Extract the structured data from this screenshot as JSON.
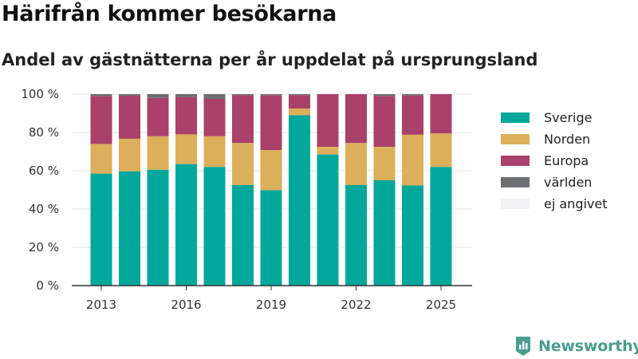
{
  "header": {
    "title": "Härifrån kommer besökarna",
    "subtitle": "Andel av gästnätterna per år uppdelat på ursprungsland"
  },
  "brand": {
    "name": "Newsworthy",
    "icon": "newsworthy-logo-icon",
    "color": "#4a9e8e"
  },
  "chart_data": {
    "type": "bar",
    "stacked": true,
    "ylim": [
      0,
      100
    ],
    "yticks": [
      0,
      20,
      40,
      60,
      80,
      100
    ],
    "ytick_labels": [
      "0 %",
      "20 %",
      "40 %",
      "60 %",
      "80 %",
      "100 %"
    ],
    "xtick_labels": [
      "2013",
      "2016",
      "2019",
      "2022",
      "2025"
    ],
    "categories": [
      "2013",
      "2014",
      "2015",
      "2016",
      "2017",
      "2018",
      "2019",
      "2020",
      "2021",
      "2022",
      "2023",
      "2024",
      "2025"
    ],
    "grid": true,
    "legend_position": "right",
    "series": [
      {
        "name": "Sverige",
        "color": "#00a79b",
        "values": [
          58.5,
          59.7,
          60.5,
          63.5,
          62,
          52.5,
          49.8,
          89,
          68.5,
          52.5,
          55,
          52.3,
          62
        ]
      },
      {
        "name": "Norden",
        "color": "#dcaf5a",
        "values": [
          15.5,
          17,
          17.5,
          15.5,
          16,
          22,
          21,
          3.5,
          4,
          22,
          17.5,
          26.5,
          17.5
        ]
      },
      {
        "name": "Europa",
        "color": "#a9416a",
        "values": [
          25,
          22.5,
          20,
          19.5,
          19.5,
          25,
          28.5,
          7,
          27.5,
          25.5,
          26.5,
          20.5,
          20.5
        ]
      },
      {
        "name": "världen",
        "color": "#6d6e71",
        "values": [
          1,
          0.8,
          2,
          1.5,
          2.5,
          0.5,
          0.7,
          0.5,
          0,
          0,
          1,
          0.7,
          0
        ]
      },
      {
        "name": "ej angivet",
        "color": "#f2f2f4",
        "values": [
          0,
          0,
          0,
          0,
          0,
          0,
          0,
          0,
          0,
          0,
          0,
          0,
          0
        ]
      }
    ]
  }
}
